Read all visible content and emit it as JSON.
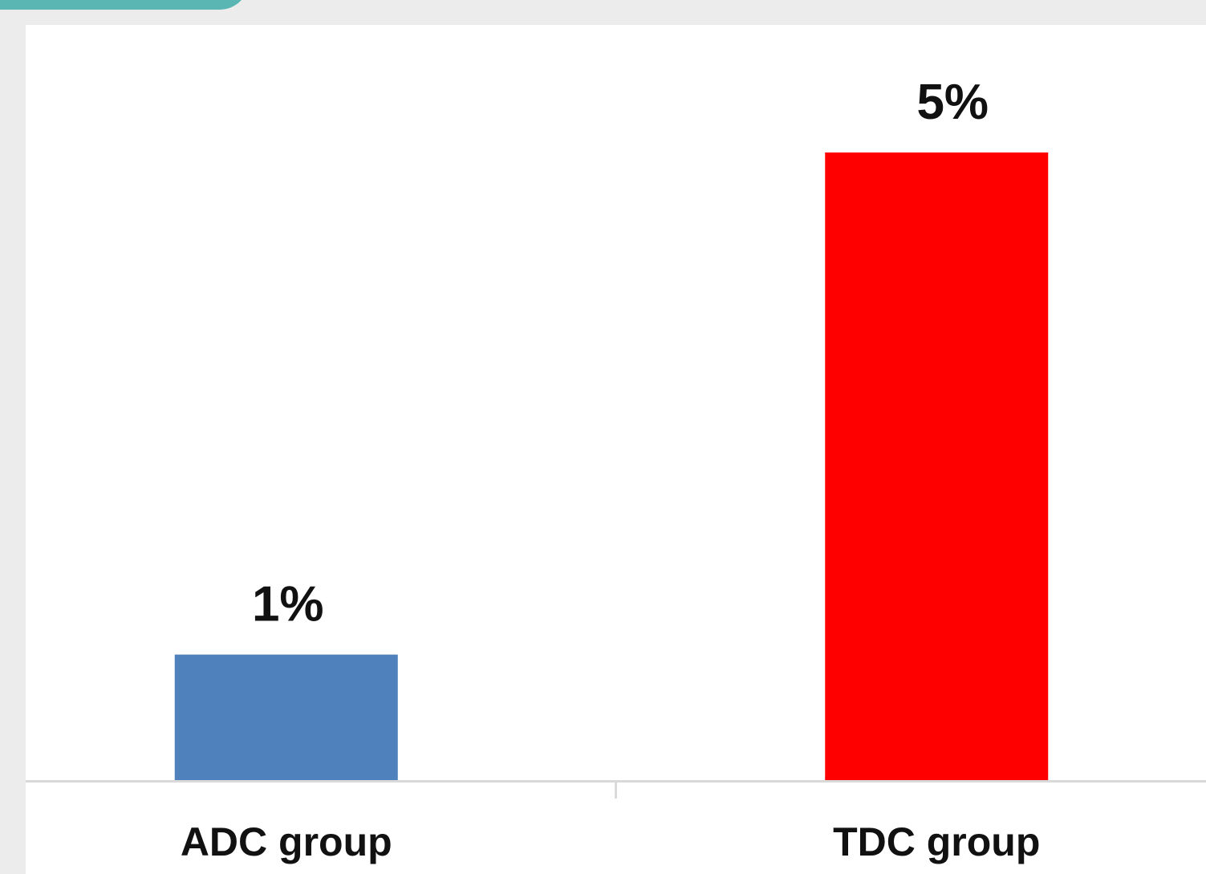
{
  "chart_data": {
    "type": "bar",
    "categories": [
      "ADC group",
      "TDC group"
    ],
    "values": [
      1,
      5
    ],
    "value_labels": [
      "1%",
      "5%"
    ],
    "colors": [
      "#4f81bd",
      "#ff0000"
    ],
    "title": "",
    "xlabel": "",
    "ylabel": "",
    "ylim": [
      0,
      5
    ],
    "grid": false,
    "legend": "none"
  }
}
